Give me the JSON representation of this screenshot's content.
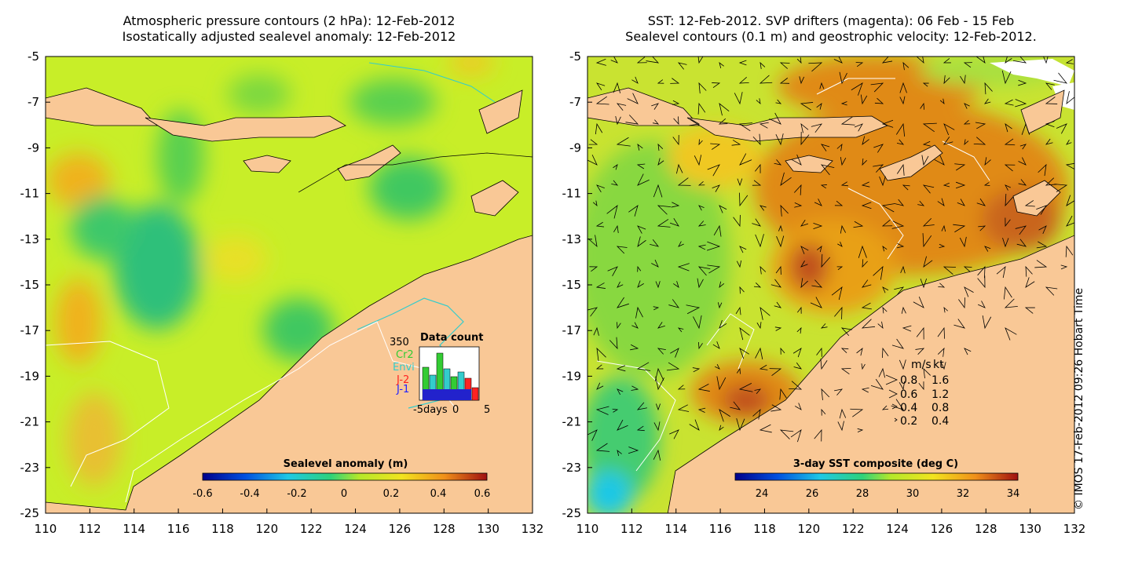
{
  "left_panel": {
    "title_line1": "Atmospheric pressure contours (2 hPa): 12-Feb-2012",
    "title_line2": "Isostatically adjusted sealevel anomaly: 12-Feb-2012",
    "colorbar_title": "Sealevel anomaly (m)",
    "colorbar_ticks": [
      "-0.6",
      "-0.4",
      "-0.2",
      "0",
      "0.2",
      "0.4",
      "0.6"
    ],
    "inset": {
      "title": "Data count",
      "max_label": "350",
      "legend": [
        "Cr2",
        "Envi",
        "J-2",
        "J-1"
      ],
      "legend_colors": [
        "#33cc33",
        "#33cccc",
        "#ff2222",
        "#2222ff"
      ],
      "xaxis_labels": [
        "-5days",
        "0",
        "5"
      ]
    }
  },
  "right_panel": {
    "title_line1": "SST: 12-Feb-2012. SVP drifters (magenta): 06 Feb - 15 Feb",
    "title_line2": "Sealevel contours (0.1 m) and geostrophic velocity: 12-Feb-2012.",
    "colorbar_title": "3-day SST composite (deg C)",
    "colorbar_ticks": [
      "24",
      "26",
      "28",
      "30",
      "32",
      "34"
    ],
    "velocity_legend": {
      "header_ms": "m/s",
      "header_kt": "kt",
      "rows": [
        {
          "ms": "0.8",
          "kt": "1.6"
        },
        {
          "ms": "0.6",
          "kt": "1.2"
        },
        {
          "ms": "0.4",
          "kt": "0.8"
        },
        {
          "ms": "0.2",
          "kt": "0.4"
        }
      ]
    }
  },
  "axes": {
    "lat_labels": [
      "-5",
      "-7",
      "-9",
      "-11",
      "-13",
      "-15",
      "-17",
      "-19",
      "-21",
      "-23",
      "-25"
    ],
    "lon_labels": [
      "110",
      "112",
      "114",
      "116",
      "118",
      "120",
      "122",
      "124",
      "126",
      "128",
      "130",
      "132"
    ]
  },
  "credit": "© IMOS 17-Feb-2012 09:26 Hobart Time",
  "colors": {
    "land": "#f9c896",
    "sla_mid": "#c8ee28",
    "sla_low": "#3fc86a",
    "sla_high": "#f0b21e",
    "sst_warm": "#e08a16",
    "sst_hot": "#c0501a",
    "sst_mid": "#c9e331"
  }
}
